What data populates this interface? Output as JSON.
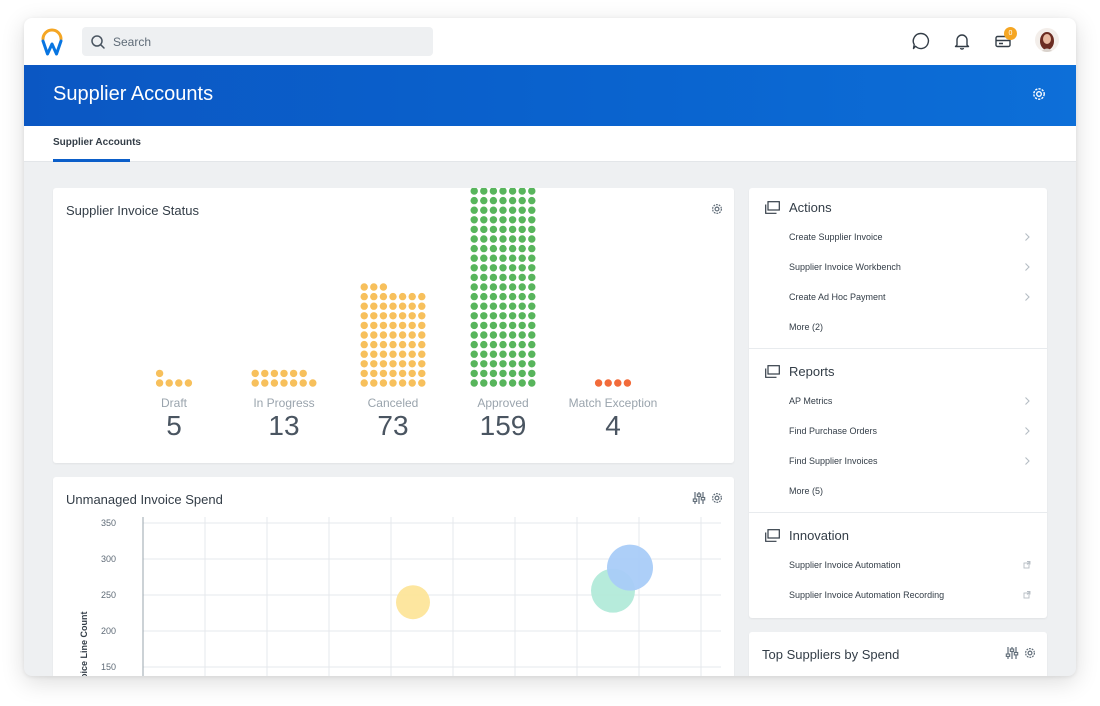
{
  "topbar": {
    "search_placeholder": "Search",
    "inbox_badge": "0"
  },
  "header": {
    "title": "Supplier Accounts"
  },
  "tabs": [
    {
      "label": "Supplier Accounts",
      "active": true
    }
  ],
  "status_card": {
    "title": "Supplier Invoice Status",
    "items": [
      {
        "label": "Draft",
        "value": "5",
        "color": "#f7c05c"
      },
      {
        "label": "In Progress",
        "value": "13",
        "color": "#f7c05c"
      },
      {
        "label": "Canceled",
        "value": "73",
        "color": "#f7c05c"
      },
      {
        "label": "Approved",
        "value": "159",
        "color": "#58b55c"
      },
      {
        "label": "Match Exception",
        "value": "4",
        "color": "#f26b3a"
      }
    ]
  },
  "spend_card": {
    "title": "Unmanaged Invoice Spend",
    "chart_data": {
      "type": "scatter",
      "ylabel": "oice Line Count",
      "y_ticks": [
        "350",
        "300",
        "250",
        "200",
        "150"
      ],
      "ylim": [
        150,
        350
      ],
      "points": [
        {
          "y": 240,
          "color": "#fde59a"
        },
        {
          "y": 256,
          "color": "#b2ead9"
        },
        {
          "y": 288,
          "color": "#a9ccf8"
        }
      ]
    }
  },
  "actions_card": {
    "sections": [
      {
        "title": "Actions",
        "links": [
          "Create Supplier Invoice",
          "Supplier Invoice Workbench",
          "Create Ad Hoc Payment"
        ],
        "more": "More (2)"
      },
      {
        "title": "Reports",
        "links": [
          "AP Metrics",
          "Find Purchase Orders",
          "Find Supplier Invoices"
        ],
        "more": "More (5)"
      },
      {
        "title": "Innovation",
        "links": [
          "Supplier Invoice Automation",
          "Supplier Invoice Automation Recording"
        ],
        "more": ""
      }
    ]
  },
  "top_suppliers": {
    "title": "Top Suppliers by Spend"
  }
}
